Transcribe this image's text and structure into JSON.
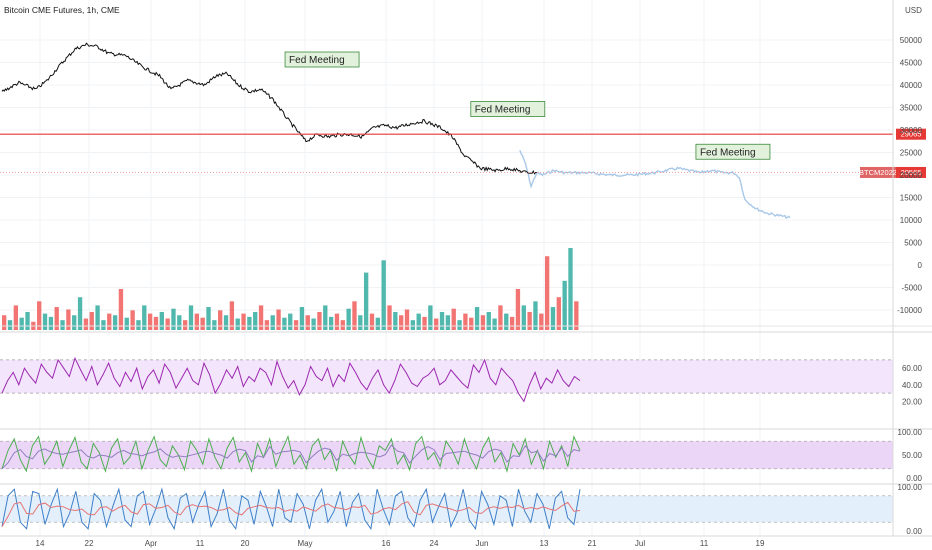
{
  "header": {
    "title": "Bitcoin CME Futures, 1h, CME"
  },
  "colors": {
    "price": "#111111",
    "projection": "#a9c8e8",
    "hline": "#e53935",
    "current_line": "#ef9a9a",
    "annotation_fill": "#e2f1dc",
    "annotation_border": "#3b8a3b",
    "vol_up": "#26a69a",
    "vol_down": "#ef5350",
    "rsi": "#9c27b0",
    "rsi_band": "#f3e5fb",
    "stoch_k": "#4caf50",
    "stoch_d": "#8e7fbf",
    "stoch_band": "#ecd6f7",
    "stochrsi_k": "#3f7fc8",
    "stochrsi_d": "#e57373",
    "stochrsi_band": "#e3f0fc"
  },
  "chart_data": {
    "type": "line",
    "title": "Bitcoin CME Futures, 1h, CME",
    "currency_label": "USD",
    "x_tick_labels": [
      "14",
      "22",
      "Apr",
      "11",
      "20",
      "May",
      "16",
      "24",
      "Jun",
      "13",
      "21",
      "Jul",
      "11",
      "19"
    ],
    "y_tick_labels": [
      "50000",
      "45000",
      "40000",
      "35000",
      "30000",
      "25000",
      "20000",
      "15000",
      "10000",
      "5000",
      "0",
      "-5000",
      "-10000"
    ],
    "ylim": [
      -12500,
      55000
    ],
    "series": [
      {
        "x": [
          0,
          3,
          6,
          8,
          10,
          13,
          15,
          17,
          19,
          22,
          25,
          28,
          30,
          33,
          36,
          38,
          40,
          42,
          44,
          46,
          48,
          51,
          54,
          56,
          58,
          60,
          62,
          64,
          66,
          68,
          70,
          73,
          75,
          78,
          80,
          82,
          85,
          88,
          90,
          93,
          95
        ],
        "values": [
          38500,
          40500,
          39000,
          41000,
          44000,
          48000,
          49000,
          48500,
          47000,
          46500,
          44000,
          42000,
          39000,
          41000,
          40000,
          42000,
          42500,
          40000,
          38500,
          39000,
          37000,
          32000,
          27500,
          29000,
          28500,
          29000,
          29000,
          28500,
          30500,
          31000,
          30500,
          31500,
          32000,
          30500,
          28500,
          24500,
          21500,
          21000,
          21500,
          20600,
          20565
        ]
      },
      {
        "x": [
          92,
          93,
          94,
          95,
          96,
          98,
          100,
          104,
          108,
          112,
          116,
          120,
          124,
          126,
          128,
          130,
          131,
          132,
          134,
          136,
          138,
          140
        ],
        "values": [
          25500,
          22500,
          17500,
          20500,
          20000,
          21000,
          20500,
          20500,
          20000,
          20000,
          20500,
          21500,
          20500,
          21000,
          20500,
          20500,
          19500,
          14500,
          12500,
          11500,
          11000,
          10500
        ]
      }
    ],
    "horizontal_line": 29065,
    "price_tags": [
      {
        "label": "29065",
        "value": 29065
      },
      {
        "symbol": "BTCM2022",
        "label": "20565",
        "value": 20565
      }
    ],
    "annotations": [
      {
        "text": "Fed Meeting",
        "x": 51,
        "y": 44000
      },
      {
        "text": "Fed Meeting",
        "x": 84,
        "y": 33000
      },
      {
        "text": "Fed Meeting",
        "x": 124,
        "y": 23500
      }
    ],
    "volume": {
      "values": [
        0.18,
        0.12,
        0.3,
        0.15,
        0.22,
        0.1,
        0.35,
        0.2,
        0.16,
        0.28,
        0.12,
        0.25,
        0.18,
        0.4,
        0.14,
        0.22,
        0.3,
        0.12,
        0.2,
        0.18,
        0.5,
        0.15,
        0.24,
        0.12,
        0.3,
        0.2,
        0.16,
        0.22,
        0.14,
        0.26,
        0.18,
        0.12,
        0.3,
        0.2,
        0.15,
        0.28,
        0.12,
        0.24,
        0.18,
        0.35,
        0.14,
        0.2,
        0.16,
        0.22,
        0.3,
        0.12,
        0.18,
        0.25,
        0.15,
        0.2,
        0.12,
        0.28,
        0.18,
        0.14,
        0.22,
        0.3,
        0.16,
        0.2,
        0.12,
        0.26,
        0.35,
        0.18,
        0.7,
        0.2,
        0.15,
        0.85,
        0.3,
        0.22,
        0.18,
        0.25,
        0.12,
        0.2,
        0.16,
        0.3,
        0.14,
        0.22,
        0.18,
        0.26,
        0.12,
        0.2,
        0.15,
        0.28,
        0.18,
        0.22,
        0.14,
        0.3,
        0.2,
        0.16,
        0.5,
        0.3,
        0.22,
        0.35,
        0.2,
        0.9,
        0.28,
        0.4,
        0.6,
        1.0,
        0.35
      ],
      "down": [
        1,
        0,
        1,
        0,
        0,
        1,
        1,
        0,
        0,
        1,
        0,
        1,
        0,
        0,
        1,
        1,
        0,
        0,
        1,
        0,
        1,
        0,
        1,
        0,
        0,
        1,
        1,
        0,
        1,
        0,
        0,
        1,
        0,
        1,
        1,
        0,
        0,
        1,
        0,
        1,
        0,
        1,
        0,
        0,
        1,
        1,
        0,
        1,
        0,
        0,
        1,
        0,
        1,
        0,
        1,
        0,
        0,
        1,
        1,
        0,
        1,
        0,
        0,
        1,
        0,
        0,
        1,
        0,
        1,
        1,
        0,
        0,
        1,
        0,
        1,
        0,
        0,
        1,
        0,
        1,
        1,
        0,
        1,
        0,
        0,
        1,
        0,
        1,
        1,
        0,
        1,
        0,
        1,
        1,
        0,
        1,
        0,
        0,
        1
      ]
    },
    "rsi": {
      "y_tick_labels": [
        "60.00",
        "40.00",
        "20.00"
      ],
      "band": [
        30,
        70
      ],
      "values": [
        30,
        45,
        55,
        40,
        60,
        50,
        42,
        65,
        55,
        48,
        70,
        60,
        50,
        72,
        58,
        45,
        62,
        40,
        52,
        66,
        48,
        38,
        55,
        44,
        60,
        35,
        50,
        58,
        42,
        65,
        55,
        36,
        48,
        60,
        45,
        40,
        66,
        52,
        30,
        42,
        58,
        48,
        62,
        38,
        50,
        44,
        60,
        55,
        40,
        68,
        50,
        36,
        45,
        28,
        40,
        62,
        50,
        45,
        60,
        38,
        52,
        44,
        66,
        55,
        42,
        34,
        48,
        58,
        40,
        30,
        45,
        65,
        55,
        42,
        38,
        48,
        52,
        60,
        40,
        45,
        58,
        50,
        42,
        36,
        64,
        55,
        70,
        48,
        40,
        60,
        52,
        45,
        30,
        20,
        40,
        55,
        35,
        48,
        42,
        58,
        45,
        38,
        50,
        45
      ]
    },
    "stochastic": {
      "y_tick_labels": [
        "100.00",
        "50.00",
        "0.00"
      ],
      "band": [
        20,
        80
      ],
      "k": [
        20,
        60,
        85,
        40,
        15,
        70,
        90,
        30,
        50,
        80,
        25,
        60,
        88,
        35,
        20,
        75,
        55,
        15,
        65,
        85,
        30,
        45,
        80,
        20,
        60,
        90,
        40,
        25,
        70,
        50,
        18,
        80,
        60,
        30,
        85,
        45,
        20,
        65,
        88,
        35,
        55,
        15,
        75,
        45,
        85,
        25,
        60,
        90,
        30,
        50,
        20,
        70,
        85,
        40,
        60,
        15,
        80,
        50,
        30,
        88,
        45,
        22,
        70,
        60,
        85,
        30,
        50,
        18,
        75,
        90,
        40,
        55,
        25,
        80,
        60,
        30,
        85,
        45,
        20,
        65,
        88,
        35,
        55,
        15,
        75,
        50,
        85,
        30,
        60,
        20,
        80,
        45,
        70,
        25,
        90,
        60
      ]
    },
    "stochastic_rsi": {
      "y_tick_labels": [
        "100.00",
        "0.00"
      ],
      "band": [
        20,
        80
      ],
      "k": [
        10,
        80,
        95,
        20,
        5,
        90,
        85,
        15,
        60,
        95,
        10,
        40,
        90,
        20,
        5,
        85,
        70,
        10,
        55,
        95,
        25,
        10,
        80,
        90,
        15,
        50,
        95,
        30,
        5,
        75,
        85,
        20,
        60,
        90,
        10,
        40,
        95,
        25,
        5,
        80,
        70,
        15,
        90,
        55,
        10,
        95,
        30,
        20,
        85,
        60,
        5,
        70,
        95,
        20,
        45,
        90,
        10,
        65,
        85,
        25,
        5,
        95,
        50,
        15,
        80,
        90,
        30,
        10,
        70,
        95,
        20,
        55,
        85,
        10,
        40,
        95,
        25,
        5,
        90,
        60,
        15,
        80,
        70,
        10,
        95,
        45,
        20,
        85,
        60,
        5,
        75,
        90,
        30,
        15,
        95
      ]
    }
  }
}
